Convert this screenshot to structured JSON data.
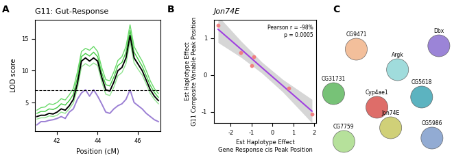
{
  "panel_labels": [
    "A",
    "B",
    "C"
  ],
  "chart_data": [
    {
      "type": "line",
      "title": "G11: Gut-Response",
      "xlabel": "Position (cM)",
      "ylabel": "LOD score",
      "x": [
        41.0,
        41.2,
        41.4,
        41.6,
        41.8,
        42.0,
        42.2,
        42.4,
        42.6,
        42.8,
        43.0,
        43.2,
        43.4,
        43.6,
        43.8,
        44.0,
        44.2,
        44.4,
        44.6,
        44.8,
        45.0,
        45.2,
        45.4,
        45.6,
        45.8,
        46.0,
        46.2,
        46.4,
        46.6,
        46.8,
        47.0
      ],
      "series": [
        {
          "color": "#4fd34f",
          "values": [
            3.8,
            4.2,
            4.3,
            4.8,
            4.7,
            5.0,
            5.6,
            5.4,
            6.2,
            7.2,
            9.8,
            13.0,
            13.5,
            13.2,
            13.8,
            13.0,
            10.5,
            8.6,
            8.4,
            9.8,
            11.6,
            12.2,
            13.8,
            17.2,
            13.8,
            12.6,
            11.5,
            10.0,
            8.4,
            7.2,
            6.4
          ]
        },
        {
          "color": "#22c022",
          "values": [
            3.3,
            3.6,
            3.6,
            4.0,
            3.9,
            4.2,
            4.8,
            4.6,
            5.3,
            6.3,
            8.9,
            12.2,
            12.7,
            12.3,
            12.9,
            12.2,
            9.7,
            7.8,
            7.6,
            9.0,
            10.8,
            11.3,
            12.9,
            16.3,
            12.9,
            11.8,
            10.7,
            9.2,
            7.7,
            6.6,
            5.8
          ]
        },
        {
          "color": "#7fe07f",
          "values": [
            2.4,
            2.6,
            2.6,
            2.9,
            2.8,
            3.0,
            3.5,
            3.3,
            4.0,
            4.9,
            7.2,
            10.6,
            11.1,
            10.7,
            11.2,
            10.8,
            8.3,
            6.3,
            6.1,
            7.4,
            9.2,
            9.7,
            11.1,
            14.5,
            11.2,
            10.2,
            9.3,
            7.9,
            6.4,
            5.5,
            4.8
          ]
        },
        {
          "color": "#000000",
          "values": [
            2.8,
            3.0,
            3.0,
            3.3,
            3.2,
            3.5,
            4.0,
            3.8,
            4.5,
            5.5,
            8.0,
            11.5,
            12.0,
            11.5,
            12.0,
            11.5,
            9.0,
            7.0,
            6.8,
            8.2,
            10.0,
            10.5,
            12.0,
            15.5,
            12.0,
            11.0,
            10.0,
            8.5,
            7.0,
            6.0,
            5.3
          ]
        },
        {
          "color": "#9b7fd4",
          "values": [
            1.5,
            2.0,
            2.0,
            2.2,
            2.3,
            2.5,
            2.8,
            2.5,
            3.5,
            4.0,
            5.5,
            6.5,
            7.0,
            6.0,
            7.0,
            6.0,
            4.8,
            3.5,
            3.3,
            4.0,
            4.5,
            4.8,
            5.5,
            7.0,
            5.0,
            4.5,
            4.0,
            3.3,
            2.8,
            2.3,
            2.0
          ]
        }
      ],
      "threshold": 6.9,
      "xlim": [
        40.9,
        47.1
      ],
      "xticks": [
        42,
        44,
        46
      ],
      "ylim": [
        0.5,
        18
      ],
      "yticks": [
        5,
        10,
        15
      ]
    },
    {
      "type": "scatter",
      "title": "Jon74E",
      "xlabel": "Est Haplotype Effect\nGene Response cis Peak Position",
      "ylabel": "Est Haplotype Effect\nG11 Composite Variable Peak Position",
      "annotation": "Pearson r = -98%\np = 0.0005",
      "series": [
        {
          "type": "scatter",
          "color": "#f08080",
          "x": [
            -2.6,
            -1.5,
            -1.0,
            -0.9,
            0.8,
            1.9
          ],
          "values": [
            1.35,
            0.6,
            0.25,
            0.5,
            -0.35,
            -1.05
          ]
        },
        {
          "type": "line",
          "color": "#a040e0",
          "x": [
            -2.6,
            -1.5,
            -0.5,
            0.5,
            1.9
          ],
          "values": [
            1.24,
            0.7,
            0.2,
            -0.29,
            -0.98
          ],
          "ci_lower": [
            0.88,
            0.48,
            0.05,
            -0.46,
            -1.3
          ],
          "ci_upper": [
            1.6,
            0.92,
            0.35,
            -0.12,
            -0.66
          ]
        }
      ],
      "xlim": [
        -2.8,
        2.1
      ],
      "xticks": [
        -2,
        -1,
        0,
        1,
        2
      ],
      "ylim": [
        -1.3,
        1.5
      ],
      "yticks": [
        -1,
        0,
        1
      ]
    }
  ],
  "diagram": {
    "nodes": [
      {
        "label": "CG9471"
      },
      {
        "label": "Dbx"
      },
      {
        "label": "Argk"
      },
      {
        "label": "CG31731"
      },
      {
        "label": "CG5618"
      },
      {
        "label": "Cyp4ae1"
      },
      {
        "label": "Jon74E"
      },
      {
        "label": "CG7759"
      },
      {
        "label": "CG5986"
      }
    ]
  }
}
